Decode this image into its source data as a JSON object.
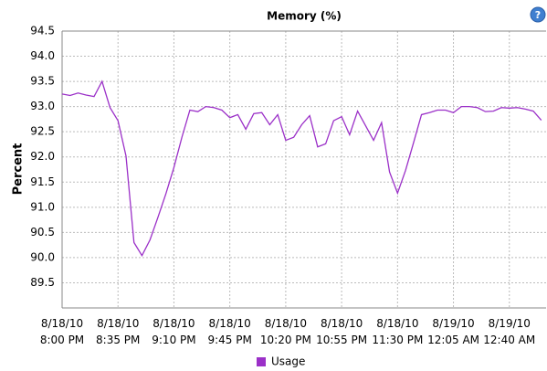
{
  "chart_data": {
    "type": "line",
    "title": "Memory (%)",
    "y_label": "Percent",
    "x": [
      0,
      5,
      10,
      15,
      20,
      25,
      30,
      35,
      40,
      45,
      50,
      55,
      60,
      65,
      70,
      75,
      80,
      85,
      90,
      95,
      100,
      105,
      110,
      115,
      120,
      125,
      130,
      135,
      140,
      145,
      150,
      155,
      160,
      165,
      170,
      175,
      180,
      185,
      190,
      195,
      200,
      205,
      210,
      215,
      220,
      225,
      230,
      235,
      240,
      245,
      250,
      255,
      260,
      265,
      270,
      275,
      280,
      285,
      290,
      295,
      300
    ],
    "series": [
      {
        "name": "Usage",
        "color": "#9b30c8",
        "values": [
          93.25,
          93.22,
          93.27,
          93.23,
          93.2,
          93.5,
          92.98,
          92.72,
          92.02,
          90.3,
          90.04,
          90.35,
          90.8,
          91.27,
          91.79,
          92.39,
          92.93,
          92.9,
          93.0,
          92.98,
          92.93,
          92.78,
          92.84,
          92.55,
          92.86,
          92.88,
          92.64,
          92.84,
          92.33,
          92.39,
          92.64,
          92.82,
          92.2,
          92.26,
          92.72,
          92.8,
          92.44,
          92.91,
          92.62,
          92.33,
          92.68,
          91.7,
          91.28,
          91.73,
          92.28,
          92.84,
          92.88,
          92.93,
          92.93,
          92.88,
          93.0,
          93.0,
          92.98,
          92.9,
          92.91,
          92.98,
          92.97,
          92.98,
          92.95,
          92.91,
          92.73
        ]
      }
    ],
    "xlim": [
      0,
      303
    ],
    "xticks": [
      {
        "value": 0,
        "label": "8/18/10\n8:00 PM"
      },
      {
        "value": 35,
        "label": "8/18/10\n8:35 PM"
      },
      {
        "value": 70,
        "label": "8/18/10\n9:10 PM"
      },
      {
        "value": 105,
        "label": "8/18/10\n9:45 PM"
      },
      {
        "value": 140,
        "label": "8/18/10\n10:20 PM"
      },
      {
        "value": 175,
        "label": "8/18/10\n10:55 PM"
      },
      {
        "value": 210,
        "label": "8/18/10\n11:30 PM"
      },
      {
        "value": 245,
        "label": "8/19/10\n12:05 AM"
      },
      {
        "value": 280,
        "label": "8/19/10\n12:40 AM"
      }
    ],
    "ylim": [
      89.0,
      94.5
    ],
    "yticks": [
      89.5,
      {
        "value": 90,
        "label": "90.0"
      },
      90.5,
      {
        "value": 91,
        "label": "91.0"
      },
      91.5,
      {
        "value": 92,
        "label": "92.0"
      },
      92.5,
      {
        "value": 93,
        "label": "93.0"
      },
      93.5,
      {
        "value": 94,
        "label": "94.0"
      },
      94.5
    ],
    "grid": true,
    "legend": "bottom"
  }
}
